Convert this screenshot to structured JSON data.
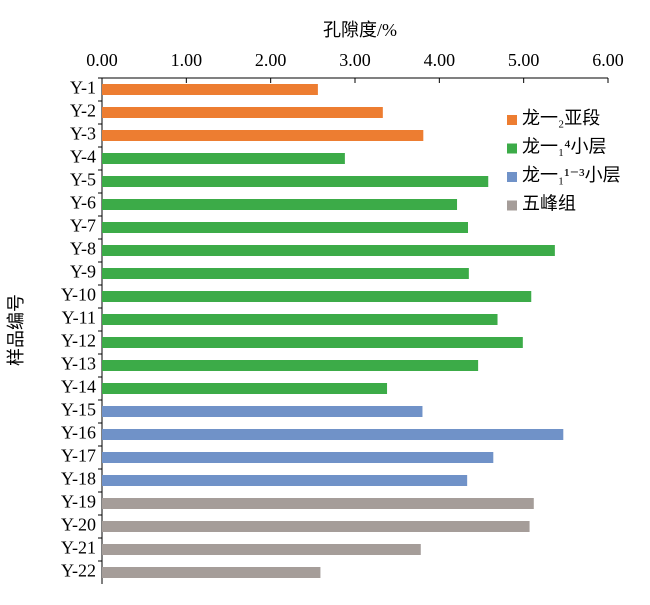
{
  "chart_data": {
    "type": "barh",
    "x_label": "孔隙度/%",
    "y_label": "样品编号",
    "categories": [
      "Y-1",
      "Y-2",
      "Y-3",
      "Y-4",
      "Y-5",
      "Y-6",
      "Y-7",
      "Y-8",
      "Y-9",
      "Y-10",
      "Y-11",
      "Y-12",
      "Y-13",
      "Y-14",
      "Y-15",
      "Y-16",
      "Y-17",
      "Y-18",
      "Y-19",
      "Y-20",
      "Y-21",
      "Y-22"
    ],
    "series": [
      {
        "name": "龙一₂亚段",
        "color": "#ed7d31",
        "values": [
          2.56,
          3.33,
          3.81,
          null,
          null,
          null,
          null,
          null,
          null,
          null,
          null,
          null,
          null,
          null,
          null,
          null,
          null,
          null,
          null,
          null,
          null,
          null
        ]
      },
      {
        "name": "龙一₁⁴小层",
        "color": "#3cab48",
        "values": [
          null,
          null,
          null,
          2.88,
          4.58,
          4.21,
          4.34,
          5.37,
          4.35,
          5.09,
          4.69,
          4.99,
          4.46,
          3.38,
          null,
          null,
          null,
          null,
          null,
          null,
          null,
          null
        ]
      },
      {
        "name": "龙一₁¹⁻³小层",
        "color": "#7092c8",
        "values": [
          null,
          null,
          null,
          null,
          null,
          null,
          null,
          null,
          null,
          null,
          null,
          null,
          null,
          null,
          3.8,
          5.47,
          4.64,
          4.33,
          null,
          null,
          null,
          null
        ]
      },
      {
        "name": "五峰组",
        "color": "#a59d99",
        "values": [
          null,
          null,
          null,
          null,
          null,
          null,
          null,
          null,
          null,
          null,
          null,
          null,
          null,
          null,
          null,
          null,
          null,
          null,
          5.12,
          5.07,
          3.78,
          2.59
        ]
      }
    ],
    "xlim": [
      0,
      6
    ],
    "xticks": [
      {
        "value": 0,
        "label": "0.00"
      },
      {
        "value": 1,
        "label": "1.00"
      },
      {
        "value": 2,
        "label": "2.00"
      },
      {
        "value": 3,
        "label": "3.00"
      },
      {
        "value": 4,
        "label": "4.00"
      },
      {
        "value": 5,
        "label": "5.00"
      },
      {
        "value": 6,
        "label": "6.00"
      }
    ],
    "legend": "upper right"
  }
}
